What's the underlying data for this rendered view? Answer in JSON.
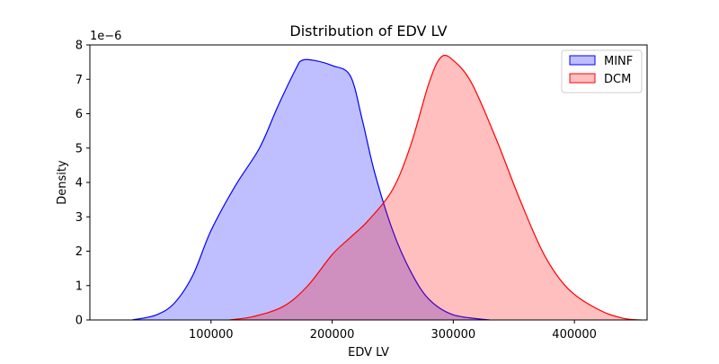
{
  "chart_data": {
    "type": "area",
    "title": "Distribution of EDV LV",
    "xlabel": "EDV LV",
    "ylabel": "Density",
    "y_offset_label": "1e−6",
    "xlim": [
      0,
      460000
    ],
    "ylim": [
      0,
      8
    ],
    "x_ticks": [
      100000,
      200000,
      300000,
      400000
    ],
    "x_tick_labels": [
      "100000",
      "200000",
      "300000",
      "400000"
    ],
    "y_ticks": [
      0,
      1,
      2,
      3,
      4,
      5,
      6,
      7,
      8
    ],
    "y_tick_labels": [
      "0",
      "1",
      "2",
      "3",
      "4",
      "5",
      "6",
      "7",
      "8"
    ],
    "grid": false,
    "legend_position": "top-right",
    "series": [
      {
        "name": "MINF",
        "line_color": "#0000ff",
        "fill_color": "#bcbcff",
        "points": [
          [
            35000,
            0.0
          ],
          [
            55000,
            0.15
          ],
          [
            70000,
            0.5
          ],
          [
            85000,
            1.3
          ],
          [
            100000,
            2.6
          ],
          [
            120000,
            3.9
          ],
          [
            140000,
            5.0
          ],
          [
            155000,
            6.2
          ],
          [
            170000,
            7.3
          ],
          [
            175000,
            7.55
          ],
          [
            185000,
            7.55
          ],
          [
            200000,
            7.4
          ],
          [
            215000,
            7.1
          ],
          [
            225000,
            5.8
          ],
          [
            235000,
            4.3
          ],
          [
            250000,
            2.6
          ],
          [
            265000,
            1.4
          ],
          [
            280000,
            0.6
          ],
          [
            300000,
            0.15
          ],
          [
            330000,
            0.0
          ]
        ]
      },
      {
        "name": "DCM",
        "line_color": "#ff0000",
        "fill_color": "#ffbcbc",
        "points": [
          [
            115000,
            0.0
          ],
          [
            135000,
            0.1
          ],
          [
            160000,
            0.4
          ],
          [
            180000,
            1.0
          ],
          [
            200000,
            1.9
          ],
          [
            215000,
            2.4
          ],
          [
            230000,
            2.9
          ],
          [
            250000,
            3.8
          ],
          [
            265000,
            5.1
          ],
          [
            280000,
            6.9
          ],
          [
            290000,
            7.65
          ],
          [
            300000,
            7.55
          ],
          [
            315000,
            6.9
          ],
          [
            335000,
            5.3
          ],
          [
            355000,
            3.5
          ],
          [
            375000,
            1.9
          ],
          [
            395000,
            0.9
          ],
          [
            420000,
            0.3
          ],
          [
            440000,
            0.05
          ],
          [
            455000,
            0.0
          ]
        ]
      }
    ]
  }
}
